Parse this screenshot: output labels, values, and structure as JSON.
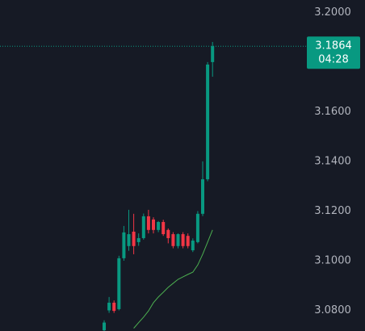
{
  "chart_data": {
    "type": "candlestick",
    "open": [
      3.072,
      3.08,
      3.0831,
      3.0805,
      3.101,
      3.1059,
      3.1117,
      3.1075,
      3.1091,
      3.1179,
      3.1166,
      3.1124,
      3.1156,
      3.1124,
      3.1107,
      3.1059,
      3.1107,
      3.11,
      3.1042,
      3.1075,
      3.1189,
      3.1328,
      3.18
    ],
    "high": [
      3.076,
      3.0854,
      3.084,
      3.102,
      3.114,
      3.1205,
      3.1189,
      3.111,
      3.119,
      3.1205,
      3.1175,
      3.116,
      3.1165,
      3.113,
      3.1115,
      3.111,
      3.1115,
      3.111,
      3.109,
      3.12,
      3.14,
      3.18,
      3.1881
    ],
    "low": [
      3.0717,
      3.079,
      3.079,
      3.08,
      3.1,
      3.104,
      3.1026,
      3.106,
      3.1085,
      3.111,
      3.111,
      3.1115,
      3.11,
      3.107,
      3.105,
      3.105,
      3.105,
      3.105,
      3.1035,
      3.107,
      3.118,
      3.132,
      3.1741
    ],
    "close": [
      3.0751,
      3.0831,
      3.0798,
      3.101,
      3.1114,
      3.1107,
      3.1059,
      3.1091,
      3.1179,
      3.1124,
      3.1124,
      3.1156,
      3.1107,
      3.1091,
      3.1059,
      3.1107,
      3.1059,
      3.1059,
      3.1081,
      3.1189,
      3.1328,
      3.179,
      3.1864
    ],
    "up_color": "#089981",
    "down_color": "#f23645",
    "ma": {
      "color": "#4caf50",
      "values": [
        null,
        null,
        null,
        null,
        null,
        null,
        3.0728,
        3.0751,
        3.0773,
        3.0798,
        3.0831,
        3.0854,
        3.0873,
        3.0893,
        3.0909,
        3.0925,
        3.0935,
        3.0945,
        3.0954,
        3.0983,
        3.1026,
        3.1075,
        3.1124
      ]
    },
    "ylim": [
      3.0717,
      3.205
    ],
    "yticks": [
      {
        "value": 3.08,
        "label": "3.0800"
      },
      {
        "value": 3.1,
        "label": "3.1000"
      },
      {
        "value": 3.12,
        "label": "3.1200"
      },
      {
        "value": 3.14,
        "label": "3.1400"
      },
      {
        "value": 3.16,
        "label": "3.1600"
      },
      {
        "value": 3.2,
        "label": "3.2000"
      }
    ],
    "last_price": 3.1864,
    "countdown": "04:28"
  }
}
